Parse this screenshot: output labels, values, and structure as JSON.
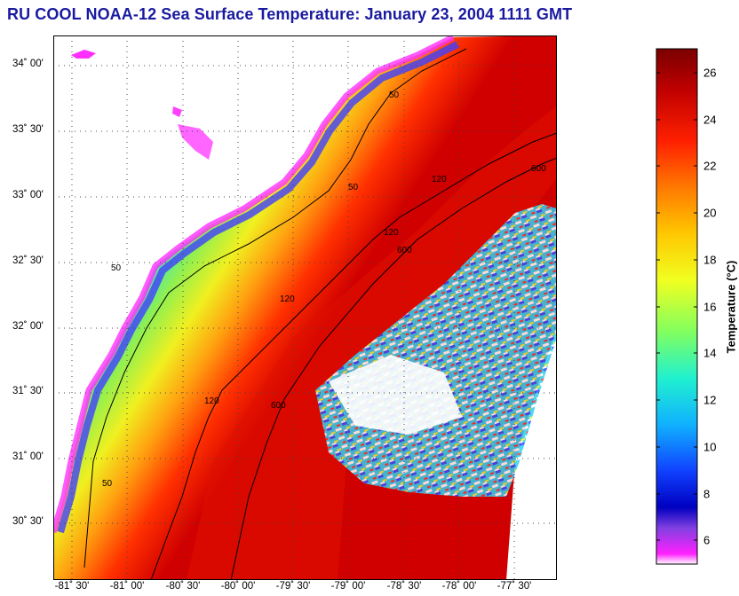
{
  "title": "RU COOL  NOAA-12  Sea Surface Temperature:  January 23, 2004 1111 GMT",
  "map": {
    "lat_labels": [
      "34˚ 00'",
      "33˚ 30'",
      "33˚ 00'",
      "32˚ 30'",
      "32˚ 00'",
      "31˚ 30'",
      "31˚ 00'",
      "30˚ 30'"
    ],
    "lon_labels": [
      "-81˚ 30'",
      "-81˚ 00'",
      "-80˚ 30'",
      "-80˚ 00'",
      "-79˚ 30'",
      "-79˚ 00'",
      "-78˚ 30'",
      "-78˚ 00'",
      "-77˚ 30'"
    ],
    "isobath_labels": [
      "50",
      "120",
      "600"
    ],
    "colors": {
      "land": "#ffffff",
      "contour": "#000000",
      "grid": "#444444"
    }
  },
  "colorbar": {
    "title": "Temperature (°C)",
    "ticks": [
      "26",
      "24",
      "22",
      "20",
      "18",
      "16",
      "14",
      "12",
      "10",
      "8",
      "6"
    ],
    "range": [
      5,
      27
    ]
  }
}
